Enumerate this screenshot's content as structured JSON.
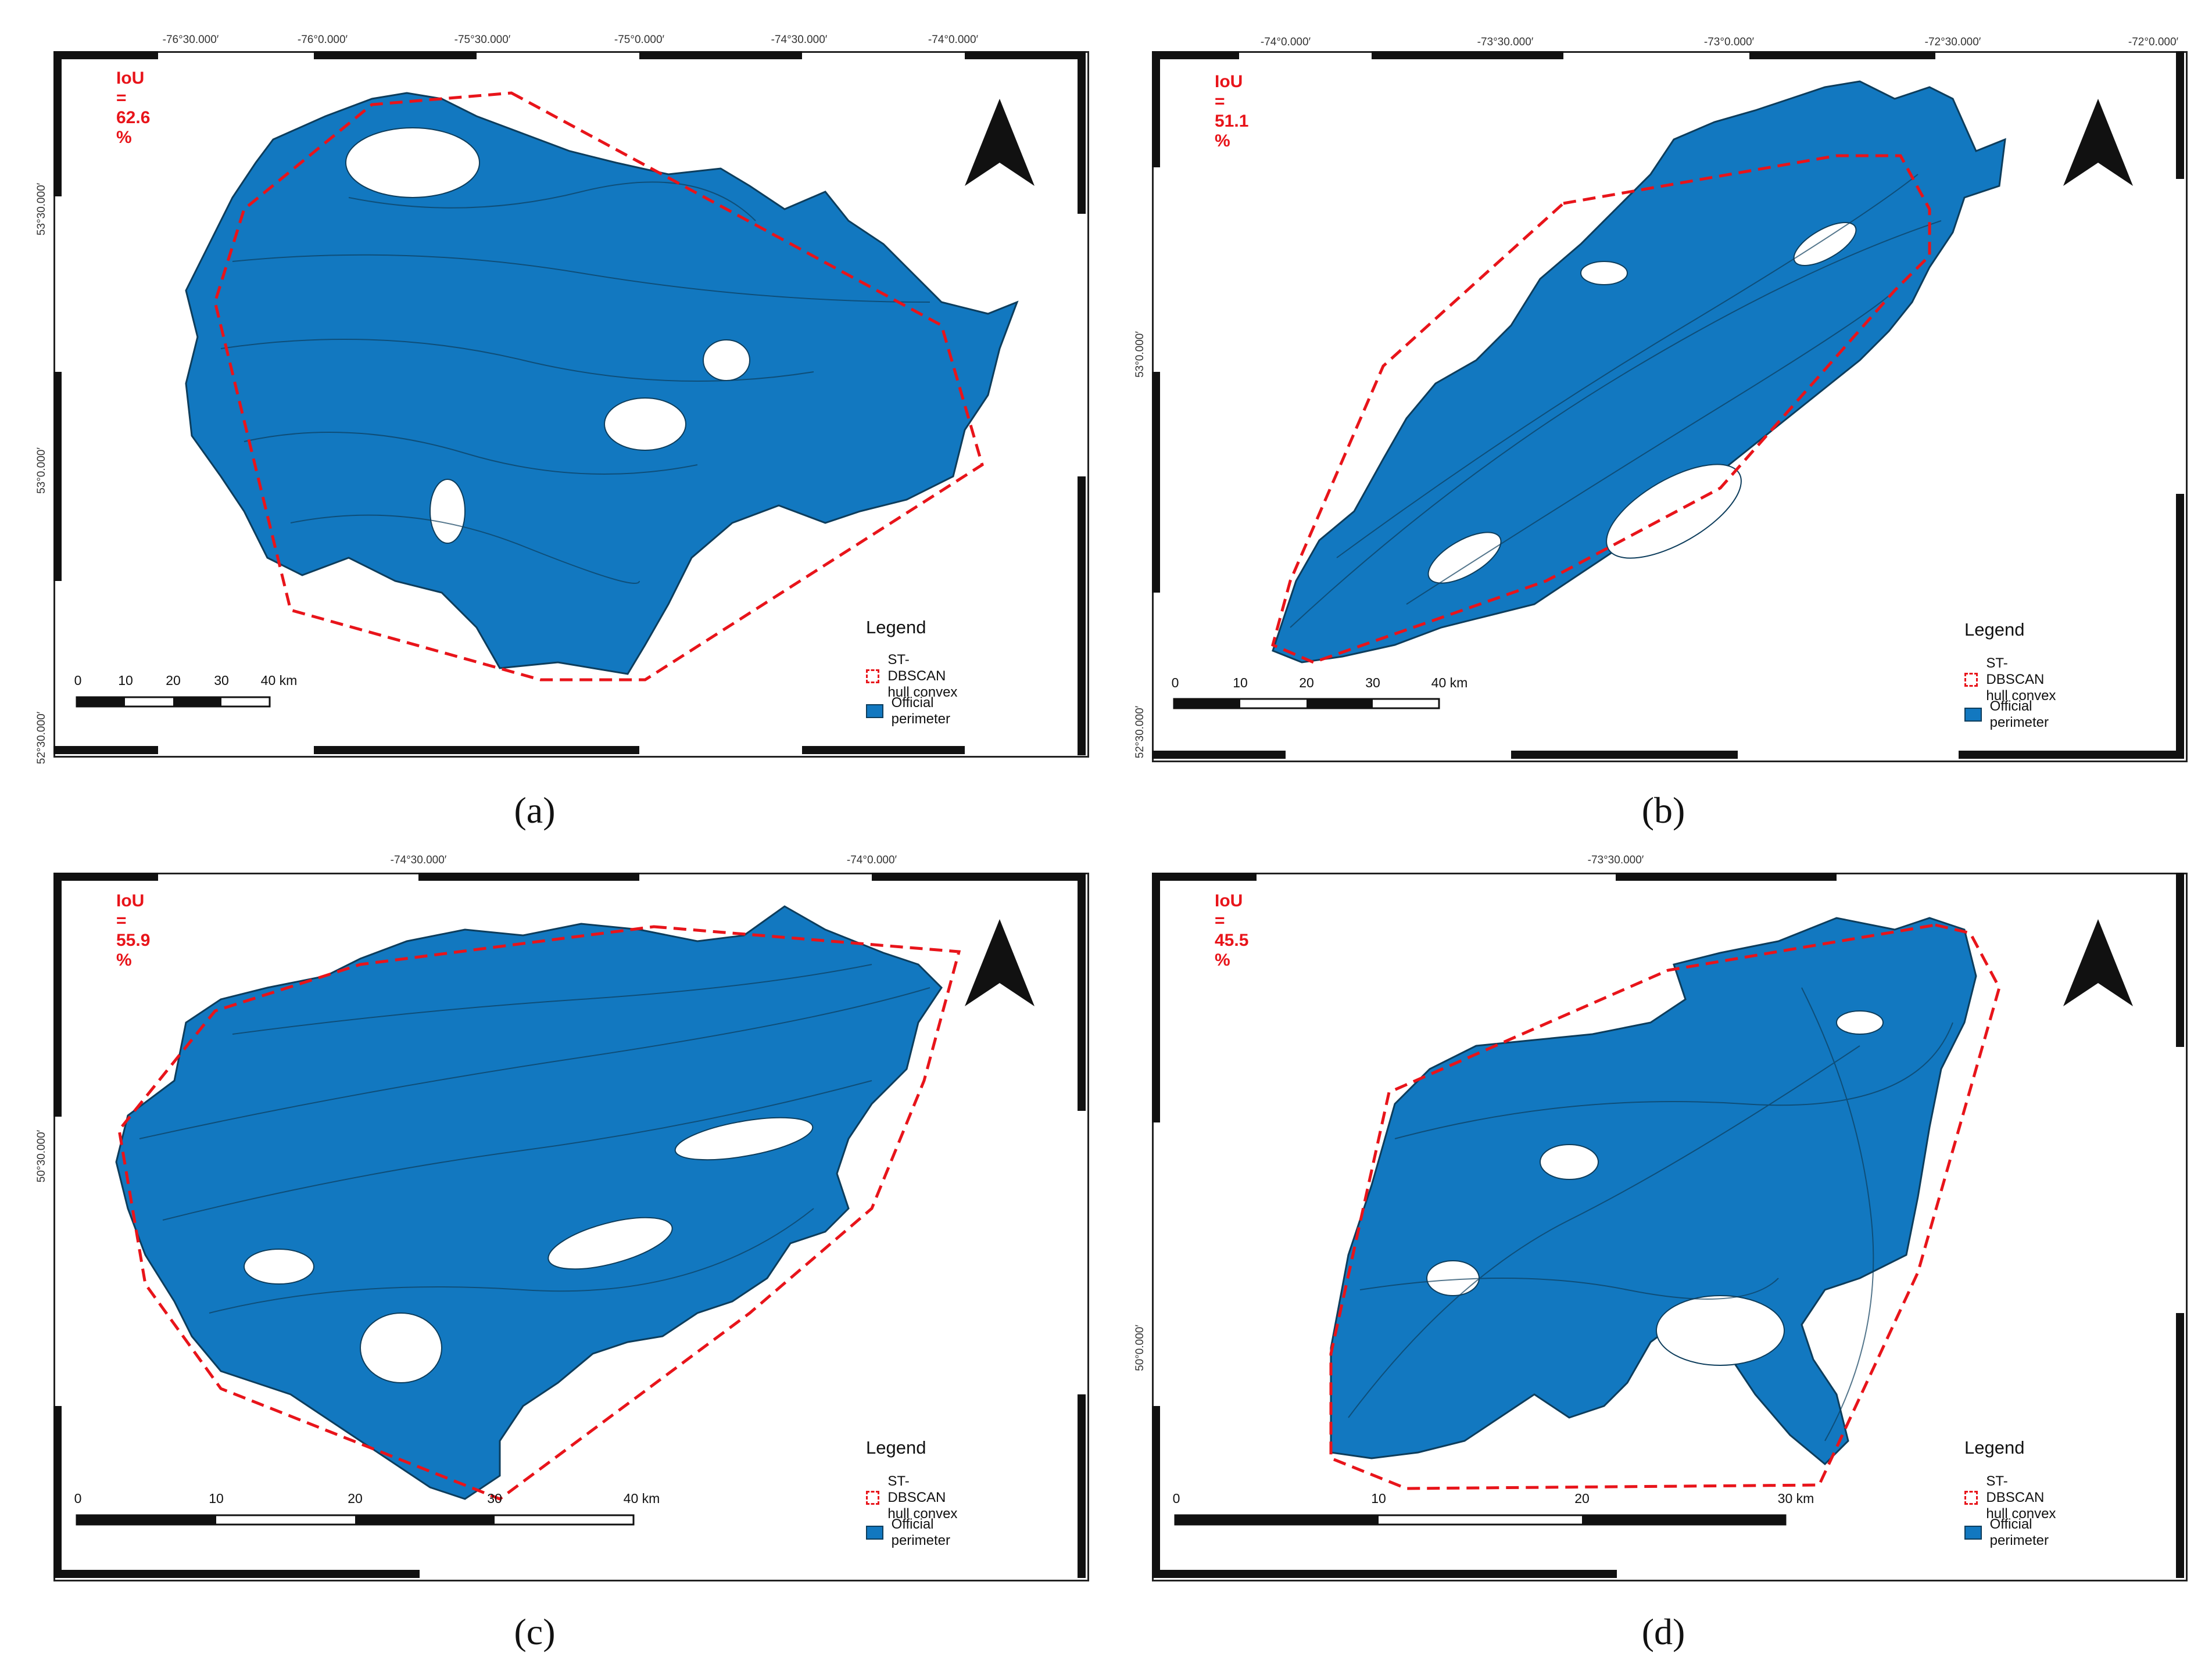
{
  "colors": {
    "fire_fill": "#1278c0",
    "fire_stroke": "#0d3d5c",
    "hull": "#e8141a",
    "frame": "#222222"
  },
  "legend": {
    "title": "Legend",
    "hull_label": "ST-DBSCAN hull convex",
    "perimeter_label": "Official perimeter"
  },
  "panels": [
    {
      "caption": "(a)",
      "iou": "IoU = 62.6 %",
      "lon_ticks": [
        "-76°30.000′",
        "-76°0.000′",
        "-75°30.000′",
        "-75°0.000′",
        "-74°30.000′",
        "-74°0.000′"
      ],
      "lat_ticks": [
        "53°30.000′",
        "53°0.000′",
        "52°30.000′"
      ],
      "scale_labels": [
        "0",
        "10",
        "20",
        "30",
        "40 km"
      ]
    },
    {
      "caption": "(b)",
      "iou": "IoU = 51.1 %",
      "lon_ticks": [
        "-74°0.000′",
        "-73°30.000′",
        "-73°0.000′",
        "-72°30.000′",
        "-72°0.000′"
      ],
      "lat_ticks": [
        "53°0.000′",
        "52°30.000′"
      ],
      "scale_labels": [
        "0",
        "10",
        "20",
        "30",
        "40 km"
      ]
    },
    {
      "caption": "(c)",
      "iou": "IoU = 55.9 %",
      "lon_ticks": [
        "-74°30.000′",
        "-74°0.000′"
      ],
      "lat_ticks": [
        "50°30.000′"
      ],
      "scale_labels": [
        "0",
        "10",
        "20",
        "30",
        "40 km"
      ]
    },
    {
      "caption": "(d)",
      "iou": "IoU = 45.5 %",
      "lon_ticks": [
        "-73°30.000′"
      ],
      "lat_ticks": [
        "50°0.000′"
      ],
      "scale_labels": [
        "0",
        "10",
        "20",
        "30 km"
      ]
    }
  ]
}
